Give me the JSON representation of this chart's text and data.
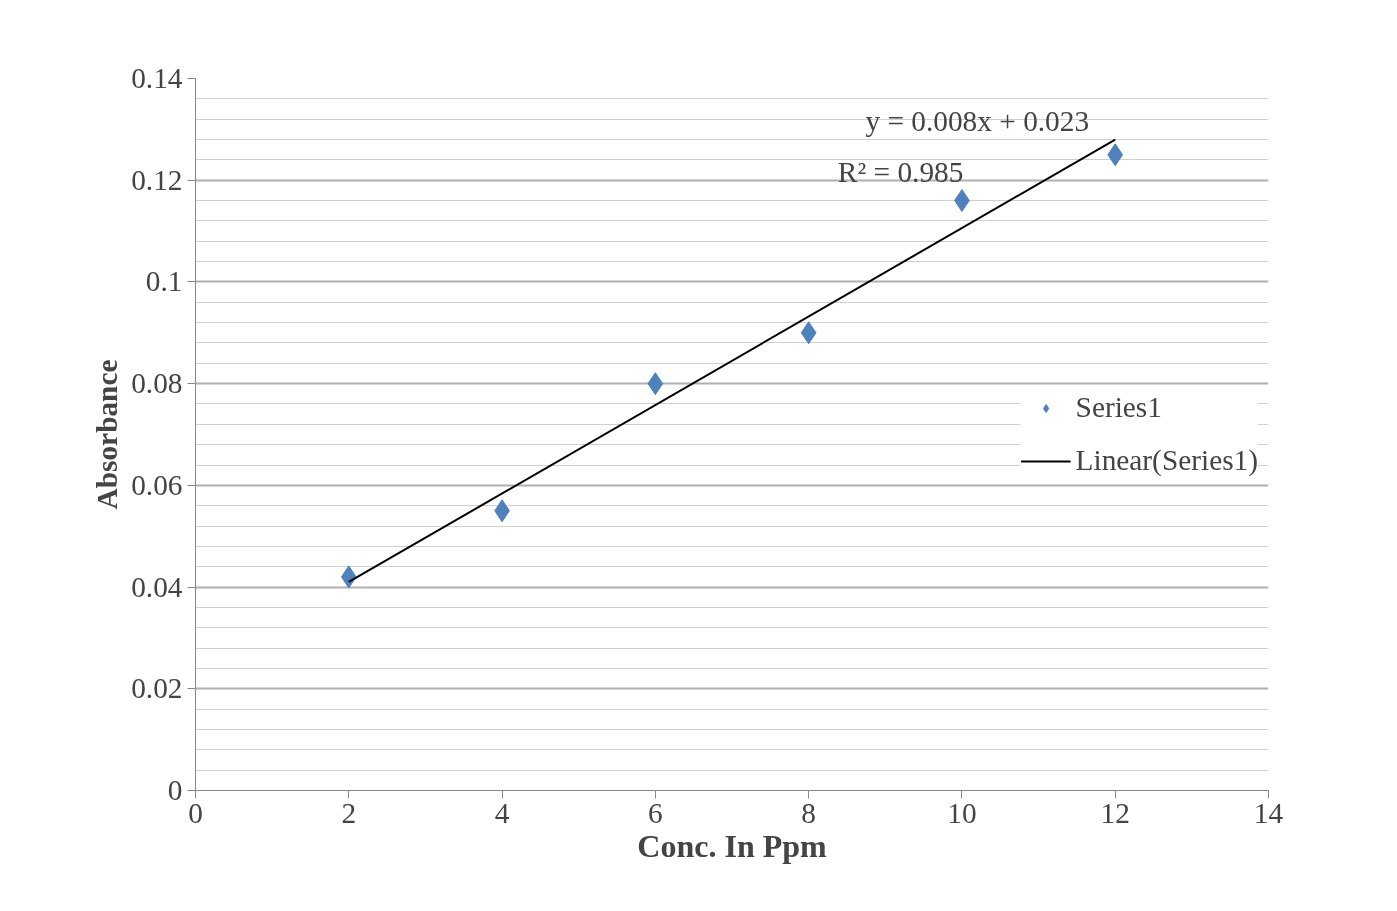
{
  "chart_data": {
    "type": "scatter",
    "xlabel": "Conc. In Ppm",
    "ylabel": "Absorbance",
    "x": [
      2,
      4,
      6,
      8,
      10,
      12
    ],
    "series": [
      {
        "name": "Series1",
        "marker": "diamond",
        "color": "#4f81bd",
        "values": [
          0.042,
          0.055,
          0.08,
          0.09,
          0.116,
          0.125
        ]
      },
      {
        "name": "Linear(Series1)",
        "type": "line",
        "marker": "none",
        "color": "#000000",
        "x": [
          2,
          12
        ],
        "values": [
          0.041,
          0.128
        ]
      }
    ],
    "annotations": [
      "y = 0.008x + 0.023",
      "R² = 0.985"
    ],
    "xlim": [
      0,
      14
    ],
    "xticks": [
      0,
      2,
      4,
      6,
      8,
      10,
      12,
      14
    ],
    "ylim": [
      0,
      0.14
    ],
    "yticks": [
      0,
      0.02,
      0.04,
      0.06,
      0.08,
      0.1,
      0.12,
      0.14
    ],
    "grid": "y",
    "legend": "right"
  }
}
